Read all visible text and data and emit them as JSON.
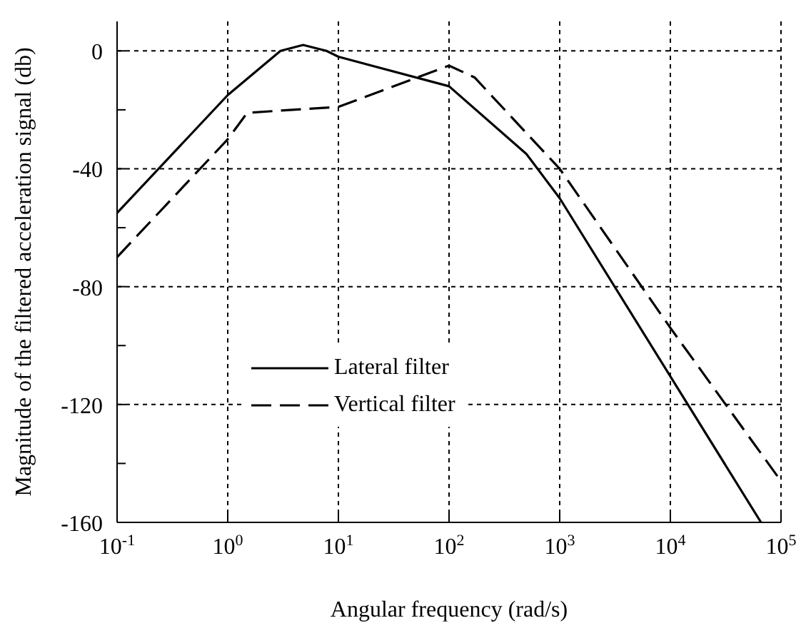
{
  "chart_data": {
    "type": "line",
    "xlabel": "Angular frequency (rad/s)",
    "ylabel": "Magnitude of the filtered acceleration signal (db)",
    "log": "x",
    "xlim": [
      0.1,
      100000
    ],
    "xticks": [
      {
        "value": 0.1,
        "label": "10$^{-1}$"
      },
      {
        "value": 1,
        "label": "10$^{0}$"
      },
      {
        "value": 10,
        "label": "10$^{1}$"
      },
      {
        "value": 100,
        "label": "10$^{2}$"
      },
      {
        "value": 1000,
        "label": "10$^{3}$"
      },
      {
        "value": 10000,
        "label": "10$^{4}$"
      },
      {
        "value": 100000,
        "label": "10$^{5}$"
      }
    ],
    "ylim": [
      -160,
      10
    ],
    "yticks": [
      -160,
      {
        "value": -140,
        "label": null
      },
      -120,
      {
        "value": -100,
        "label": null
      },
      -80,
      {
        "value": -60,
        "label": null
      },
      -40,
      {
        "value": -20,
        "label": null
      },
      0
    ],
    "grid": true,
    "legend": "bottom",
    "marker": "none",
    "series": [
      {
        "name": "Lateral filter",
        "color": "#000000",
        "line_style": "solid",
        "x": [
          0.1,
          1,
          3,
          4.8,
          7.8,
          10,
          100,
          500,
          1000,
          66000
        ],
        "values": [
          -55,
          -15,
          0,
          2,
          0,
          -2,
          -12,
          -35,
          -50,
          -160
        ]
      },
      {
        "name": "Vertical filter",
        "color": "#000000",
        "line_style": "dashed",
        "x": [
          0.1,
          1,
          1.5,
          10,
          100,
          170,
          1000,
          10000,
          100000
        ],
        "values": [
          -70,
          -30,
          -21,
          -19,
          -5,
          -9,
          -40,
          -94,
          -146
        ]
      }
    ]
  }
}
